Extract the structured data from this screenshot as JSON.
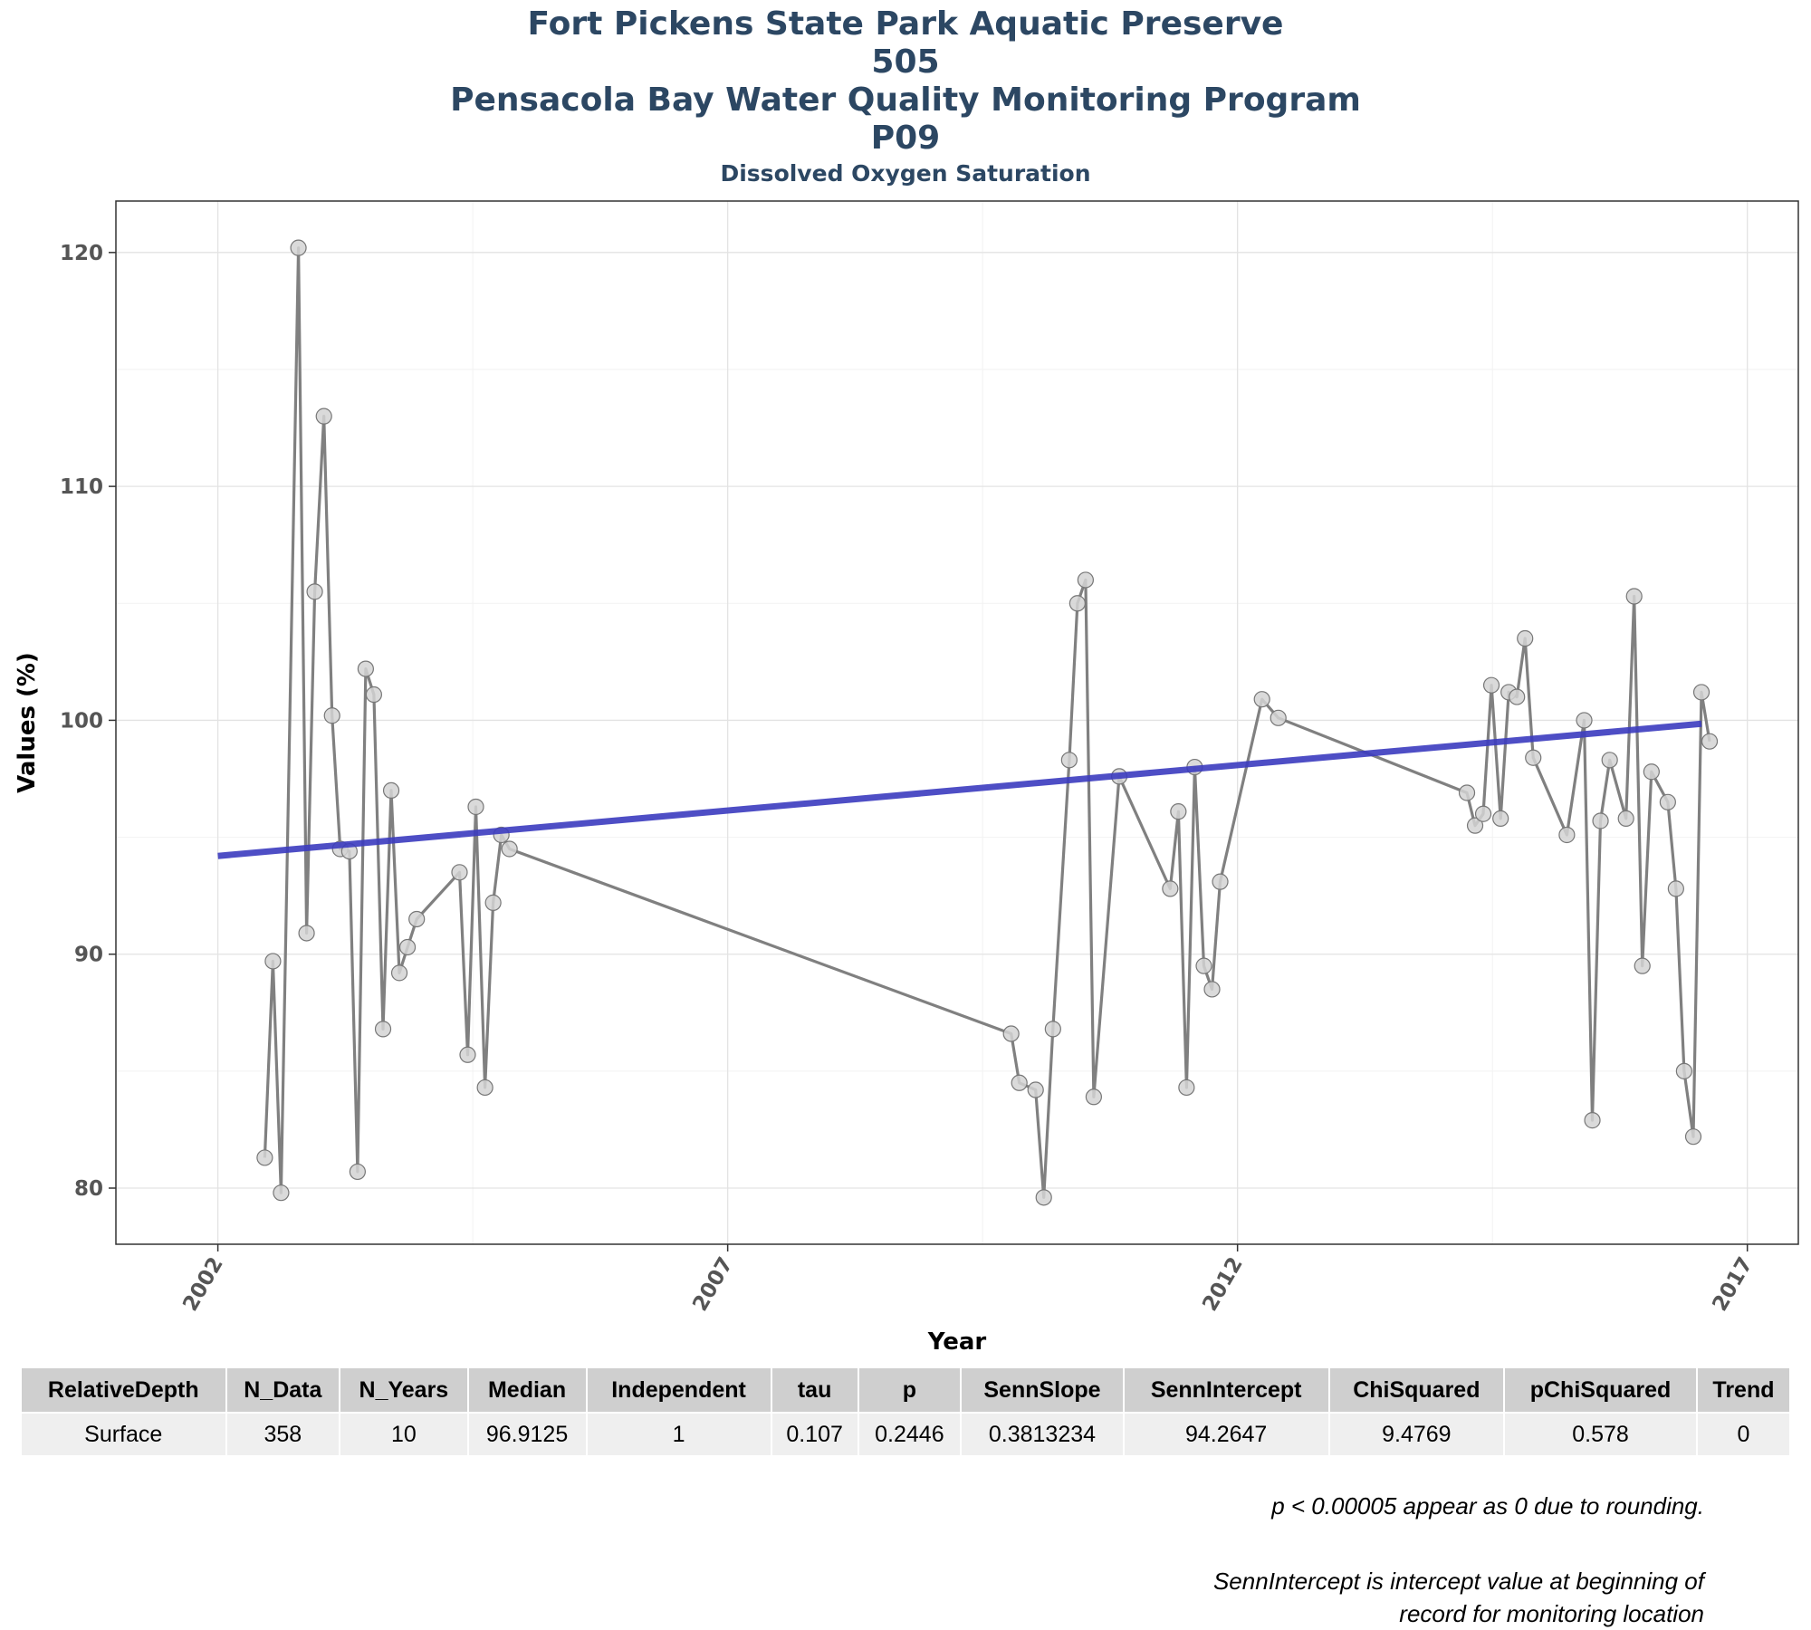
{
  "titles": [
    "Fort Pickens State Park Aquatic Preserve",
    "505",
    "Pensacola Bay Water Quality Monitoring Program",
    "P09"
  ],
  "subtitle": "Dissolved Oxygen Saturation",
  "chart_data": {
    "type": "line",
    "xlabel": "Year",
    "ylabel": "Values (%)",
    "xlim": [
      2001.0,
      2017.5
    ],
    "ylim": [
      77.6,
      122.2
    ],
    "xticks": [
      2002,
      2007,
      2012,
      2017
    ],
    "yticks": [
      80,
      90,
      100,
      110,
      120
    ],
    "grid": true,
    "colors": {
      "series_line": "#808080",
      "point_fill": "#d3d3d3",
      "trend": "#3b3bbf"
    },
    "series": [
      {
        "values": [
          [
            2002.46,
            81.3
          ],
          [
            2002.54,
            89.7
          ],
          [
            2002.62,
            79.8
          ],
          [
            2002.79,
            120.2
          ],
          [
            2002.87,
            90.9
          ],
          [
            2002.95,
            105.5
          ],
          [
            2003.04,
            113.0
          ],
          [
            2003.12,
            100.2
          ],
          [
            2003.2,
            94.5
          ],
          [
            2003.29,
            94.4
          ],
          [
            2003.37,
            80.7
          ],
          [
            2003.45,
            102.2
          ],
          [
            2003.53,
            101.1
          ],
          [
            2003.62,
            86.8
          ],
          [
            2003.7,
            97.0
          ],
          [
            2003.78,
            89.2
          ],
          [
            2003.86,
            90.3
          ],
          [
            2003.95,
            91.5
          ],
          [
            2004.37,
            93.5
          ],
          [
            2004.45,
            85.7
          ],
          [
            2004.53,
            96.3
          ],
          [
            2004.62,
            84.3
          ],
          [
            2004.7,
            92.2
          ],
          [
            2004.78,
            95.1
          ],
          [
            2004.86,
            94.5
          ],
          [
            2009.78,
            86.6
          ],
          [
            2009.86,
            84.5
          ],
          [
            2010.02,
            84.2
          ],
          [
            2010.1,
            79.6
          ],
          [
            2010.19,
            86.8
          ],
          [
            2010.35,
            98.3
          ],
          [
            2010.43,
            105.0
          ],
          [
            2010.51,
            106.0
          ],
          [
            2010.59,
            83.9
          ],
          [
            2010.84,
            97.6
          ],
          [
            2011.34,
            92.8
          ],
          [
            2011.42,
            96.1
          ],
          [
            2011.5,
            84.3
          ],
          [
            2011.58,
            98.0
          ],
          [
            2011.67,
            89.5
          ],
          [
            2011.75,
            88.5
          ],
          [
            2011.83,
            93.1
          ],
          [
            2012.24,
            100.9
          ],
          [
            2012.4,
            100.1
          ],
          [
            2014.25,
            96.9
          ],
          [
            2014.33,
            95.5
          ],
          [
            2014.41,
            96.0
          ],
          [
            2014.49,
            101.5
          ],
          [
            2014.58,
            95.8
          ],
          [
            2014.66,
            101.2
          ],
          [
            2014.74,
            101.0
          ],
          [
            2014.82,
            103.5
          ],
          [
            2014.9,
            98.4
          ],
          [
            2015.23,
            95.1
          ],
          [
            2015.4,
            100.0
          ],
          [
            2015.48,
            82.9
          ],
          [
            2015.56,
            95.7
          ],
          [
            2015.65,
            98.3
          ],
          [
            2015.81,
            95.8
          ],
          [
            2015.89,
            105.3
          ],
          [
            2015.97,
            89.5
          ],
          [
            2016.06,
            97.8
          ],
          [
            2016.22,
            96.5
          ],
          [
            2016.3,
            92.8
          ],
          [
            2016.38,
            85.0
          ],
          [
            2016.47,
            82.2
          ],
          [
            2016.55,
            101.2
          ],
          [
            2016.63,
            99.1
          ]
        ]
      }
    ],
    "trend_line": {
      "x": [
        2002.0,
        2016.55
      ],
      "y": [
        94.2,
        99.85
      ]
    }
  },
  "table": {
    "headers": [
      "RelativeDepth",
      "N_Data",
      "N_Years",
      "Median",
      "Independent",
      "tau",
      "p",
      "SennSlope",
      "SennIntercept",
      "ChiSquared",
      "pChiSquared",
      "Trend"
    ],
    "rows": [
      [
        "Surface",
        "358",
        "10",
        "96.9125",
        "1",
        "0.107",
        "0.2446",
        "0.3813234",
        "94.2647",
        "9.4769",
        "0.578",
        "0"
      ]
    ]
  },
  "notes": {
    "rounding": "p < 0.00005 appear as 0 due to rounding.",
    "intercept_line1": "SennIntercept is intercept value at beginning of",
    "intercept_line2": "record for monitoring location"
  }
}
